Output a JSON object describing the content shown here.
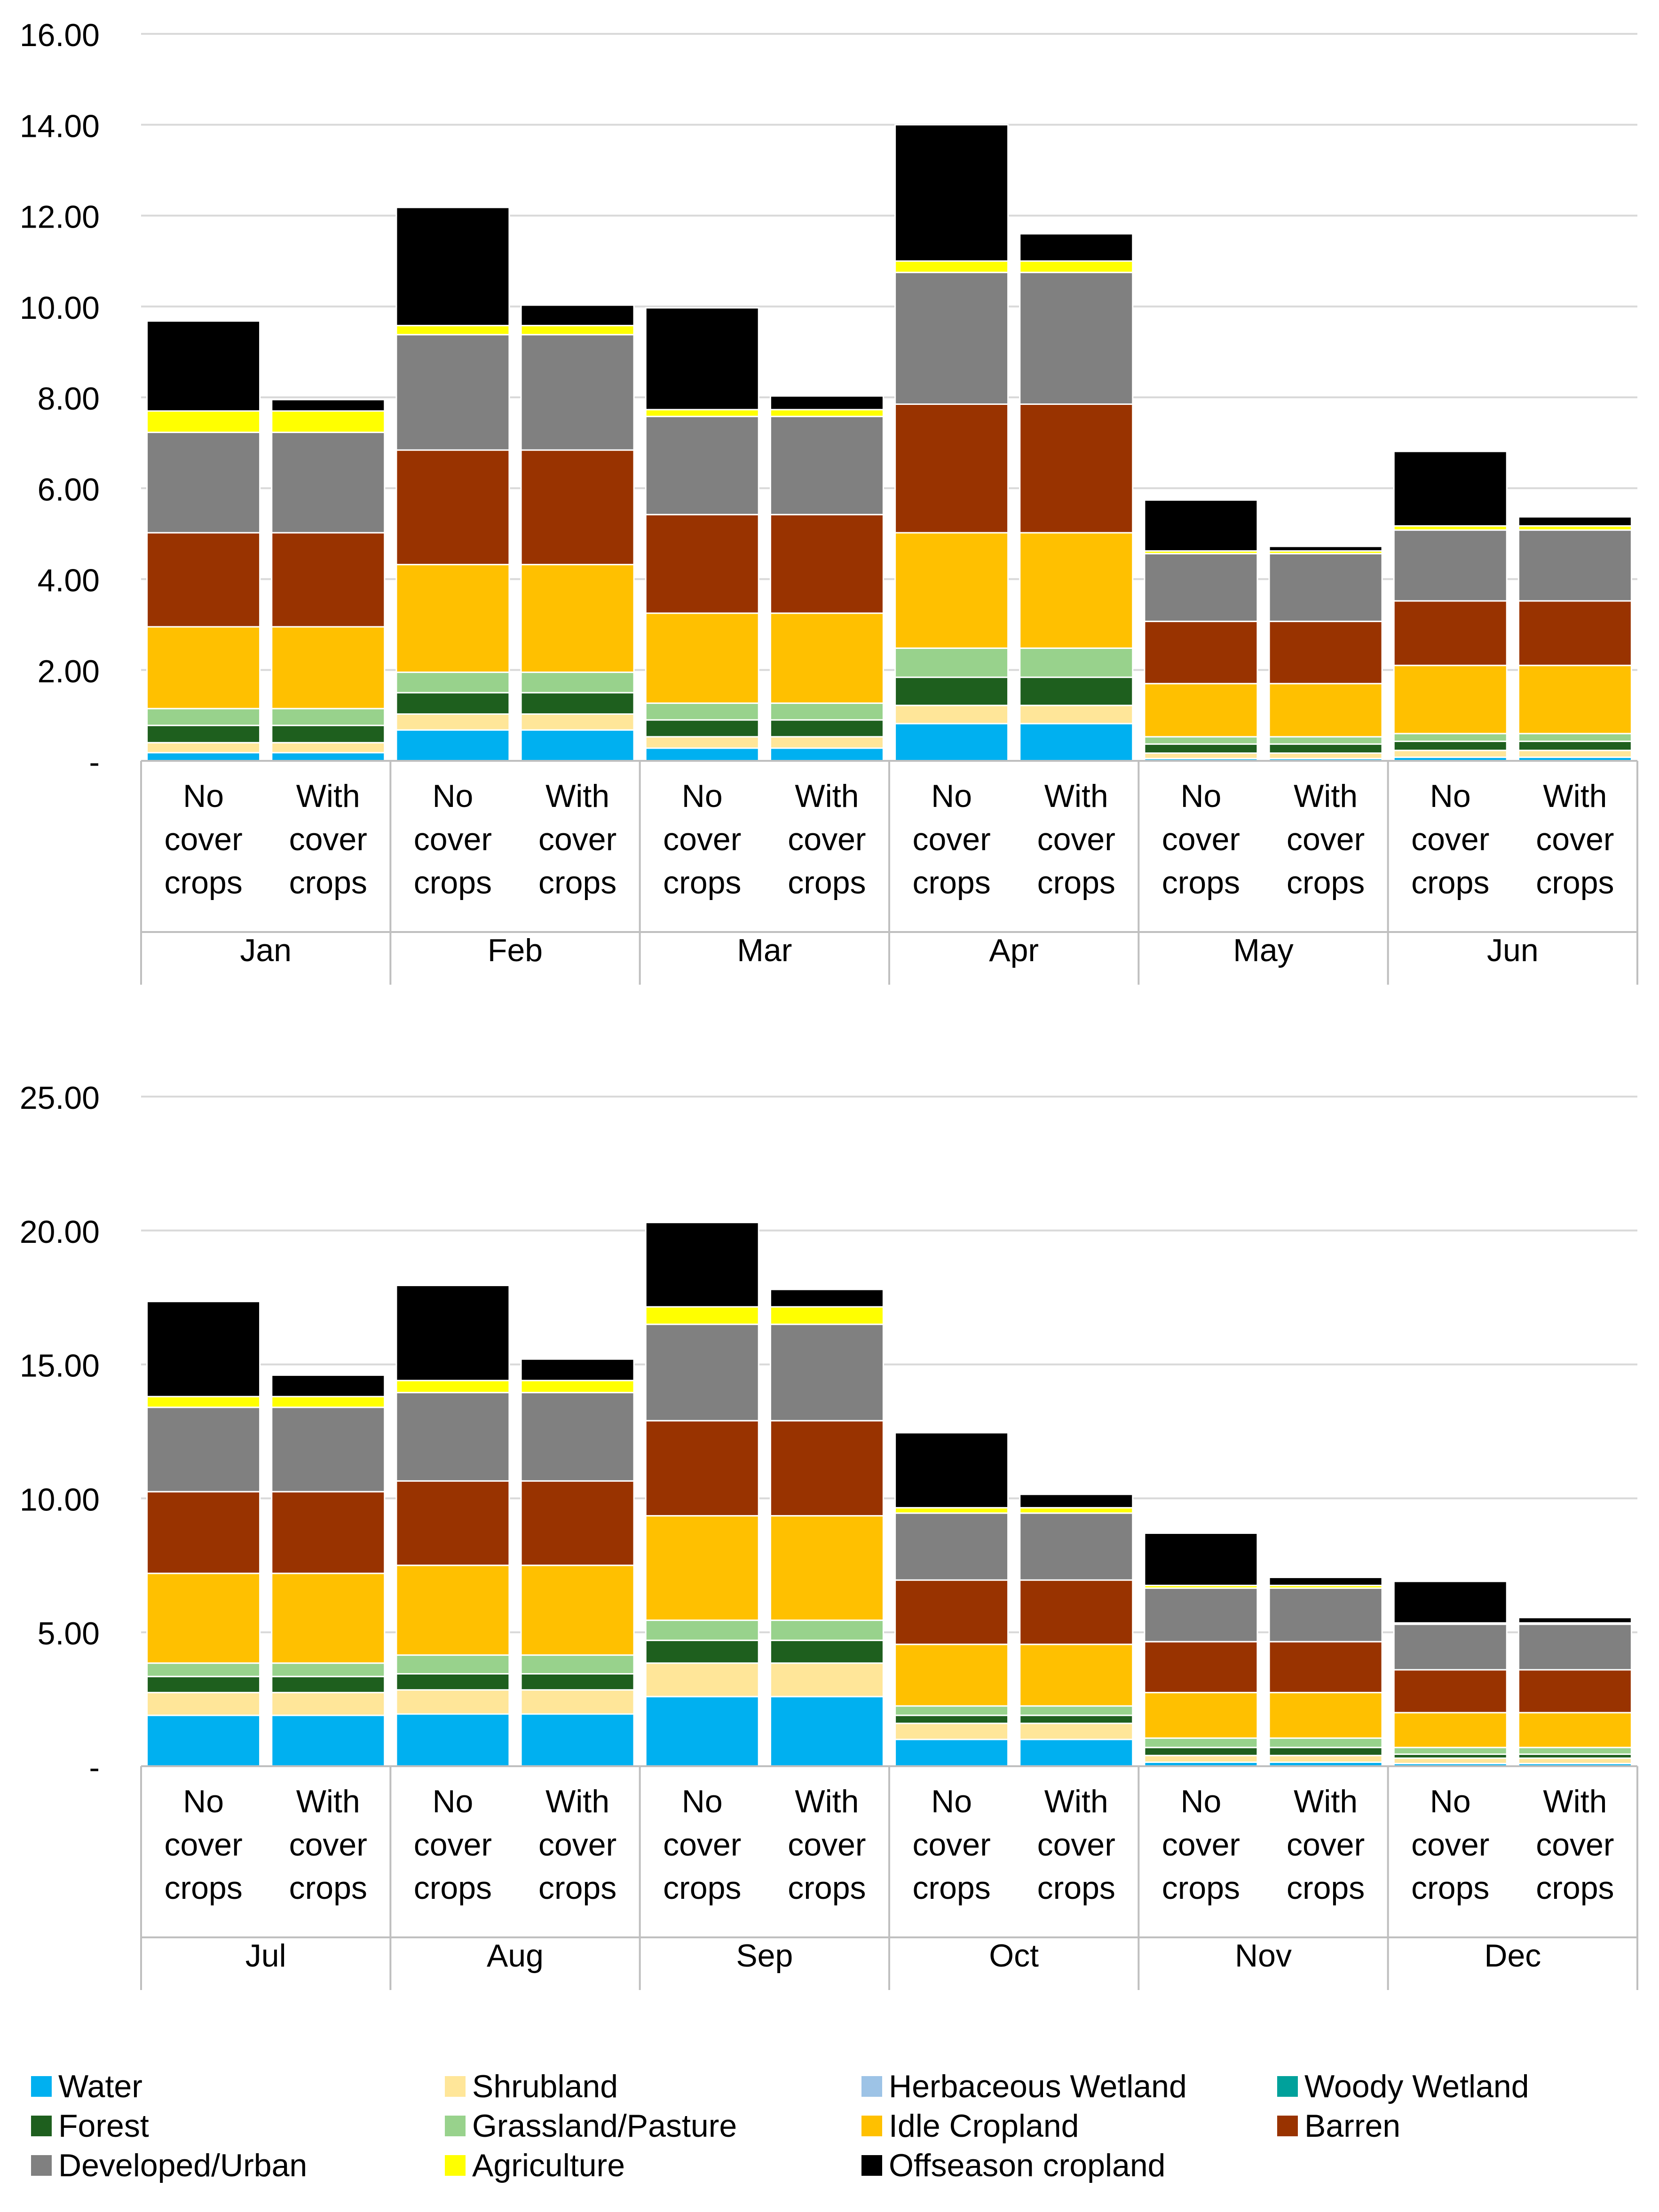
{
  "chart_data": [
    {
      "type": "bar",
      "stacked": true,
      "title": "",
      "xlabel": "",
      "ylabel": "",
      "ylim": [
        0,
        16
      ],
      "grid": true,
      "ytick_values": [
        0,
        2,
        4,
        6,
        8,
        10,
        12,
        14,
        16
      ],
      "ytick_labels": [
        "-",
        "2.00",
        "4.00",
        "6.00",
        "8.00",
        "10.00",
        "12.00",
        "14.00",
        "16.00"
      ],
      "groups": [
        "Jan",
        "Feb",
        "Mar",
        "Apr",
        "May",
        "Jun"
      ],
      "subcategories": [
        "No cover crops",
        "With cover crops"
      ],
      "series": [
        {
          "name": "Water",
          "values": [
            0.18,
            0.18,
            0.68,
            0.68,
            0.28,
            0.28,
            0.82,
            0.82,
            0.05,
            0.05,
            0.08,
            0.08
          ]
        },
        {
          "name": "Shrubland",
          "values": [
            0.22,
            0.22,
            0.35,
            0.35,
            0.25,
            0.25,
            0.4,
            0.4,
            0.12,
            0.12,
            0.15,
            0.15
          ]
        },
        {
          "name": "Herbaceous Wetland",
          "values": [
            0,
            0,
            0,
            0,
            0,
            0,
            0,
            0,
            0,
            0,
            0,
            0
          ]
        },
        {
          "name": "Woody Wetland",
          "values": [
            0,
            0,
            0,
            0,
            0,
            0,
            0,
            0,
            0,
            0,
            0,
            0
          ]
        },
        {
          "name": "Forest",
          "values": [
            0.38,
            0.38,
            0.47,
            0.47,
            0.37,
            0.37,
            0.62,
            0.62,
            0.2,
            0.2,
            0.2,
            0.2
          ]
        },
        {
          "name": "Grassland/Pasture",
          "values": [
            0.37,
            0.37,
            0.45,
            0.45,
            0.37,
            0.37,
            0.64,
            0.64,
            0.16,
            0.16,
            0.17,
            0.17
          ]
        },
        {
          "name": "Idle Cropland",
          "values": [
            1.8,
            1.8,
            2.37,
            2.37,
            1.98,
            1.98,
            2.54,
            2.54,
            1.17,
            1.17,
            1.5,
            1.5
          ]
        },
        {
          "name": "Barren",
          "values": [
            2.07,
            2.07,
            2.52,
            2.52,
            2.17,
            2.17,
            2.83,
            2.83,
            1.37,
            1.37,
            1.42,
            1.42
          ]
        },
        {
          "name": "Developed/Urban",
          "values": [
            2.21,
            2.21,
            2.54,
            2.54,
            2.16,
            2.16,
            2.9,
            2.9,
            1.49,
            1.49,
            1.56,
            1.56
          ]
        },
        {
          "name": "Agriculture",
          "values": [
            0.47,
            0.47,
            0.2,
            0.2,
            0.15,
            0.15,
            0.25,
            0.25,
            0.06,
            0.06,
            0.09,
            0.09
          ]
        },
        {
          "name": "Offseason cropland",
          "values": [
            1.98,
            0.25,
            2.6,
            0.45,
            2.24,
            0.3,
            3.0,
            0.6,
            1.12,
            0.1,
            1.64,
            0.2
          ]
        }
      ]
    },
    {
      "type": "bar",
      "stacked": true,
      "title": "",
      "xlabel": "",
      "ylabel": "",
      "ylim": [
        0,
        25
      ],
      "grid": true,
      "ytick_values": [
        0,
        5,
        10,
        15,
        20,
        25
      ],
      "ytick_labels": [
        "-",
        "5.00",
        "10.00",
        "15.00",
        "20.00",
        "25.00"
      ],
      "groups": [
        "Jul",
        "Aug",
        "Sep",
        "Oct",
        "Nov",
        "Dec"
      ],
      "subcategories": [
        "No cover crops",
        "With cover crops"
      ],
      "series": [
        {
          "name": "Water",
          "values": [
            1.9,
            1.9,
            1.95,
            1.95,
            2.6,
            2.6,
            1.0,
            1.0,
            0.15,
            0.15,
            0.1,
            0.1
          ]
        },
        {
          "name": "Shrubland",
          "values": [
            0.85,
            0.85,
            0.9,
            0.9,
            1.25,
            1.25,
            0.6,
            0.6,
            0.25,
            0.25,
            0.2,
            0.2
          ]
        },
        {
          "name": "Herbaceous Wetland",
          "values": [
            0,
            0,
            0,
            0,
            0,
            0,
            0,
            0,
            0,
            0,
            0,
            0
          ]
        },
        {
          "name": "Woody Wetland",
          "values": [
            0,
            0,
            0,
            0,
            0,
            0,
            0,
            0,
            0,
            0,
            0,
            0
          ]
        },
        {
          "name": "Forest",
          "values": [
            0.6,
            0.6,
            0.6,
            0.6,
            0.85,
            0.85,
            0.3,
            0.3,
            0.3,
            0.3,
            0.15,
            0.15
          ]
        },
        {
          "name": "Grassland/Pasture",
          "values": [
            0.5,
            0.5,
            0.7,
            0.7,
            0.75,
            0.75,
            0.35,
            0.35,
            0.35,
            0.35,
            0.25,
            0.25
          ]
        },
        {
          "name": "Idle Cropland",
          "values": [
            3.35,
            3.35,
            3.35,
            3.35,
            3.9,
            3.9,
            2.3,
            2.3,
            1.7,
            1.7,
            1.3,
            1.3
          ]
        },
        {
          "name": "Barren",
          "values": [
            3.05,
            3.05,
            3.15,
            3.15,
            3.55,
            3.55,
            2.4,
            2.4,
            1.9,
            1.9,
            1.6,
            1.6
          ]
        },
        {
          "name": "Developed/Urban",
          "values": [
            3.15,
            3.15,
            3.3,
            3.3,
            3.6,
            3.6,
            2.5,
            2.5,
            2.0,
            2.0,
            1.7,
            1.7
          ]
        },
        {
          "name": "Agriculture",
          "values": [
            0.4,
            0.4,
            0.45,
            0.45,
            0.65,
            0.65,
            0.2,
            0.2,
            0.1,
            0.1,
            0.05,
            0.05
          ]
        },
        {
          "name": "Offseason cropland",
          "values": [
            3.55,
            0.8,
            3.55,
            0.8,
            3.15,
            0.65,
            2.8,
            0.5,
            1.95,
            0.3,
            1.55,
            0.2
          ]
        }
      ]
    }
  ],
  "legend": {
    "placement": "bottom",
    "items": [
      {
        "label": "Water",
        "color": "#00B0F0"
      },
      {
        "label": "Shrubland",
        "color": "#FFE699"
      },
      {
        "label": "Herbaceous Wetland",
        "color": "#9DC3E6"
      },
      {
        "label": "Woody Wetland",
        "color": "#00A19B"
      },
      {
        "label": "Forest",
        "color": "#1E5F1E"
      },
      {
        "label": "Grassland/Pasture",
        "color": "#98D28C"
      },
      {
        "label": "Idle Cropland",
        "color": "#FFC000"
      },
      {
        "label": "Barren",
        "color": "#993300"
      },
      {
        "label": "Developed/Urban",
        "color": "#808080"
      },
      {
        "label": "Agriculture",
        "color": "#FFFF00"
      },
      {
        "label": "Offseason cropland",
        "color": "#000000"
      }
    ]
  },
  "colors": {
    "gridline": "#D9D9D9",
    "axis_line": "#BFBFBF",
    "bar_separator": "#FFFFFF"
  }
}
